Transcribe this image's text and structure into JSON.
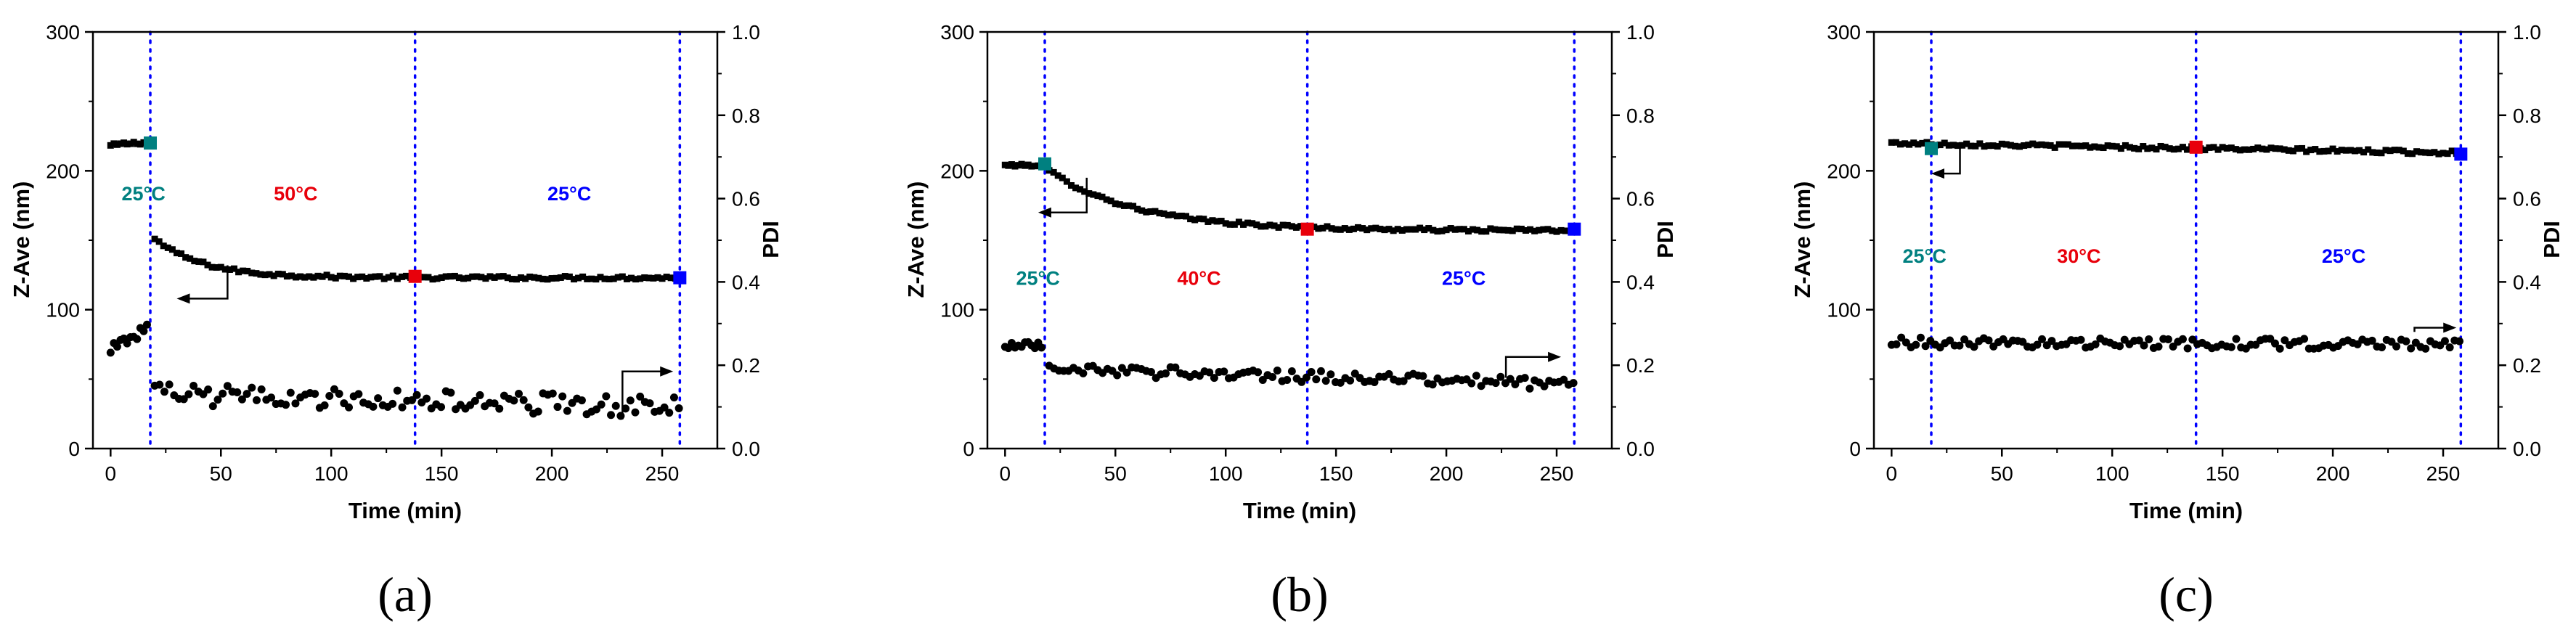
{
  "figure": {
    "panels": [
      "a",
      "b",
      "c"
    ]
  },
  "chart_data": [
    {
      "panel_label": "(a)",
      "type": "scatter",
      "xlabel": "Time (min)",
      "ylabel": "Z-Ave (nm)",
      "y2label": "PDI",
      "xlim": [
        -8,
        275
      ],
      "ylim": [
        0,
        300
      ],
      "y2lim": [
        0.0,
        1.0
      ],
      "x_ticks": [
        0,
        50,
        100,
        150,
        200,
        250
      ],
      "y_ticks": [
        0,
        100,
        200,
        300
      ],
      "y2_ticks": [
        "0.0",
        "0.2",
        "0.4",
        "0.6",
        "0.8",
        "1.0"
      ],
      "vlines": [
        18,
        138,
        258
      ],
      "vline_color": "#0000ff",
      "temperatures": [
        {
          "text": "25°C",
          "x": 5,
          "y": 184,
          "color": "#008080"
        },
        {
          "text": "50°C",
          "x": 74,
          "y": 184,
          "color": "#e8000b"
        },
        {
          "text": "25°C",
          "x": 198,
          "y": 184,
          "color": "#0000ff"
        }
      ],
      "markers": [
        {
          "x": 18,
          "y": 220,
          "color": "#008080"
        },
        {
          "x": 138,
          "y": 124,
          "color": "#e8000b"
        },
        {
          "x": 258,
          "y": 123,
          "color": "#0000ff"
        }
      ],
      "zave_segments": [
        {
          "x0": 0,
          "x1": 17,
          "y0": 218,
          "y1": 221,
          "tau": 10,
          "noise": 1.2,
          "step": 1.5
        },
        {
          "x0": 20,
          "x1": 258,
          "y0": 151,
          "y1": 123,
          "tau": 22,
          "noise": 1.2,
          "step": 2
        }
      ],
      "pdi_segments": [
        {
          "x0": 0,
          "x1": 17,
          "y0": 0.24,
          "y1": 0.29,
          "tau": 0,
          "noise": 0.015,
          "step": 1.5
        },
        {
          "x0": 20,
          "x1": 258,
          "y0": 0.13,
          "y1": 0.1,
          "tau": 0,
          "noise": 0.025,
          "step": 2.2
        }
      ],
      "arrows": [
        {
          "dir": "left",
          "x_from": 53,
          "x_to": 30,
          "y_data": 132,
          "y_to": 108
        },
        {
          "dir": "right",
          "x_from": 232,
          "x_to": 255,
          "y_data": 0.07,
          "y_to": 0.185
        }
      ]
    },
    {
      "panel_label": "(b)",
      "type": "scatter",
      "xlabel": "Time (min)",
      "ylabel": "Z-Ave (nm)",
      "y2label": "PDI",
      "xlim": [
        -8,
        275
      ],
      "ylim": [
        0,
        300
      ],
      "y2lim": [
        0.0,
        1.0
      ],
      "x_ticks": [
        0,
        50,
        100,
        150,
        200,
        250
      ],
      "y_ticks": [
        0,
        100,
        200,
        300
      ],
      "y2_ticks": [
        "0.0",
        "0.2",
        "0.4",
        "0.6",
        "0.8",
        "1.0"
      ],
      "vlines": [
        18,
        137,
        258
      ],
      "vline_color": "#0000ff",
      "temperatures": [
        {
          "text": "25°C",
          "x": 5,
          "y": 123,
          "color": "#008080"
        },
        {
          "text": "40°C",
          "x": 78,
          "y": 123,
          "color": "#e8000b"
        },
        {
          "text": "25°C",
          "x": 198,
          "y": 123,
          "color": "#0000ff"
        }
      ],
      "markers": [
        {
          "x": 18,
          "y": 205,
          "color": "#008080"
        },
        {
          "x": 137,
          "y": 158,
          "color": "#e8000b"
        },
        {
          "x": 258,
          "y": 158,
          "color": "#0000ff"
        }
      ],
      "zave_segments": [
        {
          "x0": 0,
          "x1": 17,
          "y0": 204,
          "y1": 204,
          "tau": 0,
          "noise": 0.8,
          "step": 1.5
        },
        {
          "x0": 20,
          "x1": 258,
          "y0": 200,
          "y1": 157,
          "tau": 40,
          "noise": 1.2,
          "step": 2
        }
      ],
      "pdi_segments": [
        {
          "x0": 0,
          "x1": 17,
          "y0": 0.25,
          "y1": 0.25,
          "tau": 0,
          "noise": 0.01,
          "step": 1.5
        },
        {
          "x0": 20,
          "x1": 258,
          "y0": 0.19,
          "y1": 0.155,
          "tau": 0,
          "noise": 0.014,
          "step": 2.2
        }
      ],
      "arrows": [
        {
          "dir": "left",
          "x_from": 37,
          "x_to": 15,
          "y_data": 195,
          "y_to": 170
        },
        {
          "dir": "right",
          "x_from": 227,
          "x_to": 252,
          "y_data": 0.17,
          "y_to": 0.22
        }
      ]
    },
    {
      "panel_label": "(c)",
      "type": "scatter",
      "xlabel": "Time (min)",
      "ylabel": "Z-Ave (nm)",
      "y2label": "PDI",
      "xlim": [
        -8,
        275
      ],
      "ylim": [
        0,
        300
      ],
      "y2lim": [
        0.0,
        1.0
      ],
      "x_ticks": [
        0,
        50,
        100,
        150,
        200,
        250
      ],
      "y_ticks": [
        0,
        100,
        200,
        300
      ],
      "y2_ticks": [
        "0.0",
        "0.2",
        "0.4",
        "0.6",
        "0.8",
        "1.0"
      ],
      "vlines": [
        18,
        138,
        258
      ],
      "vline_color": "#0000ff",
      "temperatures": [
        {
          "text": "25°C",
          "x": 5,
          "y": 139,
          "color": "#008080"
        },
        {
          "text": "30°C",
          "x": 75,
          "y": 139,
          "color": "#e8000b"
        },
        {
          "text": "25°C",
          "x": 195,
          "y": 139,
          "color": "#0000ff"
        }
      ],
      "markers": [
        {
          "x": 18,
          "y": 216,
          "color": "#008080"
        },
        {
          "x": 138,
          "y": 217,
          "color": "#e8000b"
        },
        {
          "x": 258,
          "y": 212,
          "color": "#0000ff"
        }
      ],
      "zave_segments": [
        {
          "x0": 0,
          "x1": 258,
          "y0": 220,
          "y1": 213,
          "tau": 0,
          "noise": 1.3,
          "step": 2
        }
      ],
      "pdi_segments": [
        {
          "x0": 0,
          "x1": 258,
          "y0": 0.255,
          "y1": 0.25,
          "tau": 0,
          "noise": 0.012,
          "step": 2.2
        }
      ],
      "arrows": [
        {
          "dir": "left",
          "x_from": 31,
          "x_to": 18,
          "y_data": 216,
          "y_to": 198
        },
        {
          "dir": "right",
          "x_from": 237,
          "x_to": 256,
          "y_data": 0.28,
          "y_to": 0.29
        }
      ]
    }
  ]
}
